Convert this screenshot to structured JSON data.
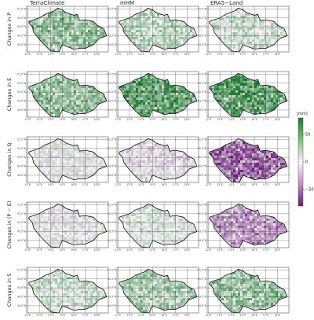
{
  "columns": [
    "TerraClimate",
    "mHM",
    "ERA5−Land"
  ],
  "rows": [
    "Changes in P",
    "Changes in E",
    "Changes in Q",
    "Changes in (P − E)",
    "Changes in S"
  ],
  "lat_ticks": [
    {
      "value": 51.0,
      "label": "51.0°N"
    },
    {
      "value": 50.5,
      "label": "50.5°N"
    },
    {
      "value": 50.0,
      "label": "50.0°N"
    },
    {
      "value": 49.5,
      "label": "49.5°N"
    },
    {
      "value": 49.0,
      "label": "49.0°N"
    }
  ],
  "lon_ticks": [
    {
      "value": 12,
      "label": "12°E"
    },
    {
      "value": 13,
      "label": "13°E"
    },
    {
      "value": 14,
      "label": "14°E"
    },
    {
      "value": 15,
      "label": "15°E"
    },
    {
      "value": 16,
      "label": "16°E"
    },
    {
      "value": 17,
      "label": "17°E"
    },
    {
      "value": 18,
      "label": "18°E"
    }
  ],
  "colorbar": {
    "label": "[mm]",
    "lim": [
      -80,
      80
    ],
    "ticks": [
      50,
      0,
      {
        "value": -50,
        "label": "−50"
      }
    ]
  }
}
